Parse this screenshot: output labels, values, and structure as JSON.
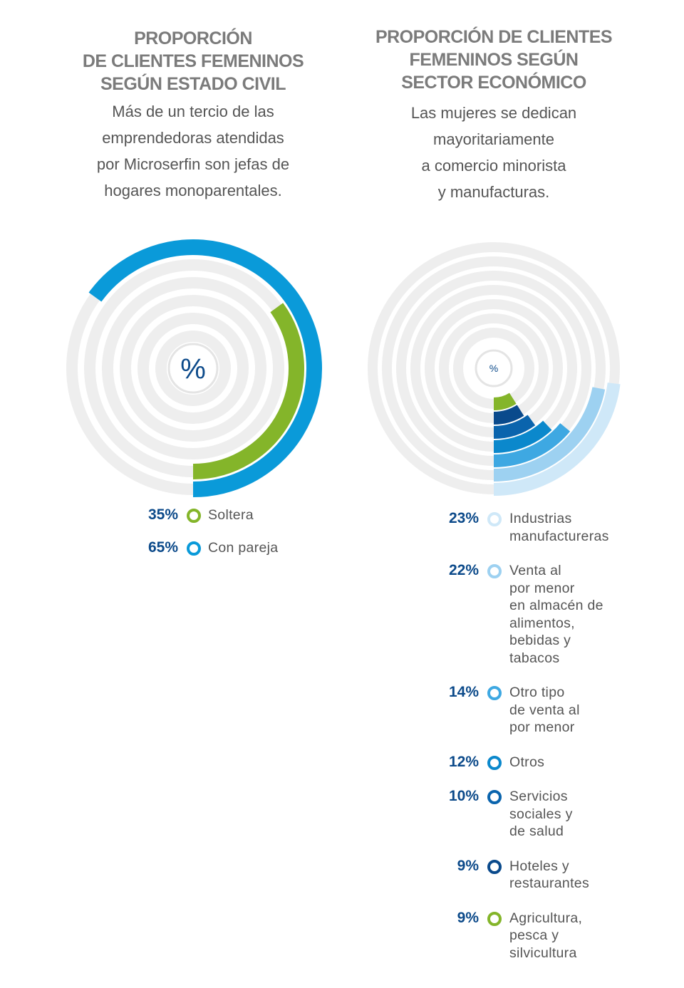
{
  "chart_data": [
    {
      "type": "radial_bar",
      "title": "PROPORCIÓN\nDE CLIENTES FEMENINOS\nSEGÚN ESTADO CIVIL",
      "subtitle": "Más de un tercio de las\nemprendedoras atendidas\npor Microserfin son jefas de\nhogares monoparentales.",
      "center_label": "%",
      "categories": [
        "Soltera",
        "Con pareja"
      ],
      "values": [
        35,
        65
      ],
      "value_labels": [
        "35%",
        "65%"
      ],
      "colors": [
        "#84b52a",
        "#0a9ad9"
      ]
    },
    {
      "type": "radial_bar",
      "title": "PROPORCIÓN DE CLIENTES\nFEMENINOS SEGÚN\nSECTOR ECONÓMICO",
      "subtitle": "Las mujeres se dedican\nmayoritariamente\na comercio minorista\ny manufacturas.",
      "center_label": "%",
      "categories": [
        "Industrias\nmanufactureras",
        "Venta al\npor menor\nen almacén de\nalimentos,\nbebidas y\ntabacos",
        "Otro tipo\nde venta al\npor menor",
        "Otros",
        "Servicios\nsociales y\nde salud",
        "Hoteles y\nrestaurantes",
        "Agricultura,\npesca y\nsilvicultura"
      ],
      "values": [
        23,
        22,
        14,
        12,
        10,
        9,
        9
      ],
      "value_labels": [
        "23%",
        "22%",
        "14%",
        "12%",
        "10%",
        "9%",
        "9%"
      ],
      "colors": [
        "#cfe8f8",
        "#9dd1f1",
        "#3ea8e2",
        "#0b88cc",
        "#0a64ad",
        "#0a4a8c",
        "#84b52a"
      ]
    }
  ]
}
